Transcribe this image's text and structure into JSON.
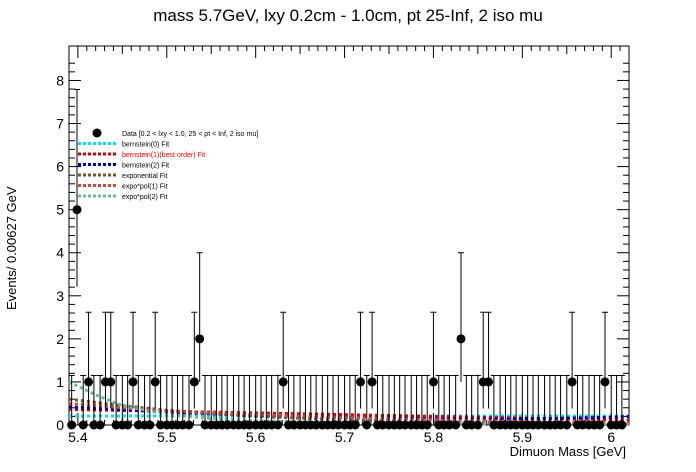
{
  "chart_data": {
    "type": "scatter",
    "title": "mass 5.7GeV, lxy 0.2cm - 1.0cm, pt 25-Inf, 2 iso mu",
    "xlabel": "Dimuon Mass [GeV]",
    "ylabel": "Events/ 0.00627 GeV",
    "xlim": [
      5.39,
      6.02
    ],
    "ylim": [
      0,
      8.8
    ],
    "xticks": [
      5.4,
      5.5,
      5.6,
      5.7,
      5.8,
      5.9,
      6
    ],
    "yticks": [
      0,
      1,
      2,
      3,
      4,
      5,
      6,
      7,
      8
    ],
    "bin_width": 0.00627,
    "data_points": {
      "name": "Data [0.2 < lxy < 1.0, 25 < pt < Inf, 2 iso mu]",
      "x": [
        5.393,
        5.399,
        5.406,
        5.412,
        5.418,
        5.425,
        5.431,
        5.437,
        5.443,
        5.45,
        5.456,
        5.462,
        5.468,
        5.475,
        5.481,
        5.487,
        5.493,
        5.5,
        5.506,
        5.512,
        5.518,
        5.525,
        5.531,
        5.537,
        5.543,
        5.55,
        5.556,
        5.562,
        5.568,
        5.575,
        5.581,
        5.587,
        5.593,
        5.6,
        5.606,
        5.612,
        5.618,
        5.625,
        5.631,
        5.637,
        5.643,
        5.65,
        5.656,
        5.662,
        5.668,
        5.675,
        5.681,
        5.687,
        5.693,
        5.7,
        5.706,
        5.712,
        5.718,
        5.725,
        5.731,
        5.737,
        5.743,
        5.75,
        5.756,
        5.762,
        5.768,
        5.775,
        5.781,
        5.787,
        5.793,
        5.8,
        5.806,
        5.812,
        5.818,
        5.825,
        5.831,
        5.837,
        5.843,
        5.85,
        5.856,
        5.862,
        5.868,
        5.875,
        5.881,
        5.887,
        5.893,
        5.9,
        5.906,
        5.912,
        5.918,
        5.925,
        5.931,
        5.937,
        5.943,
        5.95,
        5.956,
        5.962,
        5.968,
        5.975,
        5.981,
        5.987,
        5.993,
        6.0,
        6.006,
        6.012
      ],
      "y": [
        0,
        5,
        0,
        1,
        0,
        0,
        1,
        1,
        0,
        0,
        0,
        1,
        0,
        0,
        0,
        1,
        0,
        0,
        0,
        0,
        0,
        0,
        1,
        2,
        0,
        0,
        0,
        0,
        0,
        0,
        0,
        0,
        0,
        0,
        0,
        0,
        0,
        0,
        1,
        0,
        0,
        0,
        0,
        0,
        0,
        0,
        0,
        0,
        0,
        0,
        0,
        0,
        1,
        0,
        1,
        0,
        0,
        0,
        0,
        0,
        0,
        0,
        0,
        0,
        0,
        1,
        0,
        0,
        0,
        0,
        2,
        0,
        0,
        0,
        1,
        1,
        0,
        0,
        0,
        0,
        0,
        0,
        0,
        0,
        0,
        0,
        0,
        0,
        0,
        0,
        1,
        0,
        0,
        0,
        0,
        0,
        1,
        0,
        0,
        0
      ],
      "color": "#000000"
    },
    "fits": [
      {
        "name": "bernstein(0) Fit",
        "color": "#00e5ee",
        "x": [
          5.39,
          6.02
        ],
        "y": [
          0.21,
          0.21
        ]
      },
      {
        "name": "bernstein(1)(best order) Fit",
        "color": "#e00000",
        "label_color": "#ff0000",
        "x": [
          5.39,
          5.5,
          5.6,
          5.7,
          5.8,
          5.9,
          6.02
        ],
        "y": [
          0.36,
          0.32,
          0.28,
          0.24,
          0.2,
          0.16,
          0.12
        ]
      },
      {
        "name": "bernstein(2) Fit",
        "color": "#0000cc",
        "x": [
          5.39,
          5.5,
          5.6,
          5.7,
          5.8,
          5.9,
          6.0,
          6.02
        ],
        "y": [
          0.42,
          0.3,
          0.22,
          0.17,
          0.14,
          0.14,
          0.18,
          0.2
        ]
      },
      {
        "name": "exponential Fit",
        "color": "#7a5230",
        "x": [
          5.39,
          5.45,
          5.5,
          5.6,
          5.7,
          5.8,
          5.9,
          6.02
        ],
        "y": [
          0.6,
          0.45,
          0.34,
          0.2,
          0.12,
          0.07,
          0.04,
          0.02
        ]
      },
      {
        "name": "expo*pol(1) Fit",
        "color": "#cc4a3a",
        "x": [
          5.39,
          5.45,
          5.5,
          5.6,
          5.7,
          5.8,
          5.9,
          6.02
        ],
        "y": [
          0.5,
          0.4,
          0.33,
          0.24,
          0.17,
          0.12,
          0.08,
          0.05
        ]
      },
      {
        "name": "expo*pol(2) Fit",
        "color": "#6fb8a0",
        "x": [
          5.39,
          5.42,
          5.45,
          5.5,
          5.55,
          5.6,
          5.7,
          5.8,
          5.9,
          6.02
        ],
        "y": [
          1.0,
          0.7,
          0.45,
          0.25,
          0.15,
          0.1,
          0.05,
          0.03,
          0.02,
          0.01
        ]
      }
    ],
    "legend_position": "top-left",
    "grid": false
  }
}
